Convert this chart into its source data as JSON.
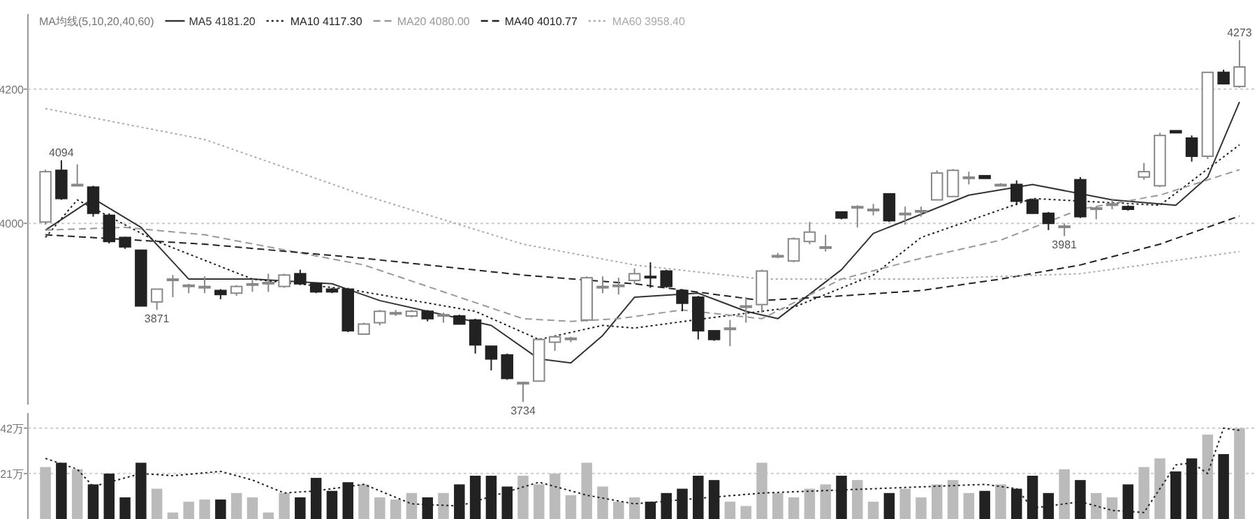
{
  "chart_data": [
    {
      "type": "candlestick",
      "categories": [
        null,
        null,
        null,
        null,
        null,
        null,
        null,
        null,
        null,
        null,
        null,
        null,
        null,
        null,
        null,
        null,
        null,
        null,
        null,
        null,
        null,
        null,
        null,
        null,
        null,
        null,
        null,
        null,
        null,
        null,
        null,
        null,
        null,
        null,
        null,
        null,
        null,
        null,
        null,
        null,
        null,
        null,
        null,
        null,
        null,
        null,
        null,
        null,
        null,
        null,
        null,
        null,
        null,
        null,
        null,
        null,
        null,
        null,
        null,
        null,
        null,
        null,
        null,
        null,
        null,
        null,
        null,
        null,
        null,
        null,
        null,
        null,
        null,
        null,
        null,
        null
      ],
      "ohlc": [
        [
          4002,
          4080,
          3998,
          4077
        ],
        [
          4079,
          4094,
          4035,
          4037
        ],
        [
          4056,
          4088,
          4056,
          4058
        ],
        [
          4054,
          4056,
          4010,
          4015
        ],
        [
          4012,
          4015,
          3970,
          3973
        ],
        [
          3979,
          3980,
          3962,
          3965
        ],
        [
          3960,
          3960,
          3877,
          3877
        ],
        [
          3883,
          3902,
          3871,
          3902
        ],
        [
          3915,
          3923,
          3890,
          3917
        ],
        [
          3906,
          3910,
          3896,
          3908
        ],
        [
          3904,
          3921,
          3896,
          3906
        ],
        [
          3900,
          3902,
          3887,
          3894
        ],
        [
          3896,
          3908,
          3892,
          3906
        ],
        [
          3908,
          3917,
          3898,
          3910
        ],
        [
          3910,
          3925,
          3898,
          3912
        ],
        [
          3906,
          3925,
          3904,
          3923
        ],
        [
          3925,
          3931,
          3908,
          3910
        ],
        [
          3910,
          3912,
          3896,
          3898
        ],
        [
          3902,
          3904,
          3896,
          3898
        ],
        [
          3902,
          3904,
          3838,
          3840
        ],
        [
          3835,
          3852,
          3835,
          3850
        ],
        [
          3852,
          3871,
          3848,
          3869
        ],
        [
          3866,
          3871,
          3862,
          3867
        ],
        [
          3862,
          3871,
          3860,
          3869
        ],
        [
          3869,
          3871,
          3854,
          3858
        ],
        [
          3862,
          3867,
          3852,
          3864
        ],
        [
          3862,
          3864,
          3850,
          3850
        ],
        [
          3856,
          3858,
          3806,
          3819
        ],
        [
          3817,
          3817,
          3781,
          3798
        ],
        [
          3804,
          3806,
          3767,
          3769
        ],
        [
          3762,
          3764,
          3734,
          3763
        ],
        [
          3765,
          3829,
          3765,
          3827
        ],
        [
          3823,
          3833,
          3810,
          3831
        ],
        [
          3827,
          3831,
          3823,
          3829
        ],
        [
          3856,
          3921,
          3854,
          3919
        ],
        [
          3904,
          3921,
          3896,
          3906
        ],
        [
          3906,
          3919,
          3894,
          3908
        ],
        [
          3915,
          3933,
          3910,
          3925
        ],
        [
          3921,
          3942,
          3904,
          3919
        ],
        [
          3929,
          3931,
          3904,
          3906
        ],
        [
          3900,
          3902,
          3869,
          3881
        ],
        [
          3890,
          3892,
          3827,
          3840
        ],
        [
          3840,
          3840,
          3825,
          3827
        ],
        [
          3842,
          3856,
          3817,
          3844
        ],
        [
          3875,
          3890,
          3852,
          3877
        ],
        [
          3879,
          3931,
          3867,
          3929
        ],
        [
          3950,
          3956,
          3948,
          3952
        ],
        [
          3944,
          3979,
          3942,
          3977
        ],
        [
          3973,
          4002,
          3969,
          3987
        ],
        [
          3963,
          3983,
          3958,
          3965
        ],
        [
          4017,
          4017,
          4006,
          4008
        ],
        [
          4023,
          4027,
          3994,
          4025
        ],
        [
          4019,
          4029,
          4012,
          4021
        ],
        [
          4044,
          4044,
          4002,
          4004
        ],
        [
          4014,
          4025,
          3998,
          4015
        ],
        [
          4017,
          4025,
          4010,
          4019
        ],
        [
          4035,
          4079,
          4035,
          4075
        ],
        [
          4040,
          4081,
          4040,
          4079
        ],
        [
          4067,
          4077,
          4058,
          4069
        ],
        [
          4071,
          4071,
          4067,
          4067
        ],
        [
          4056,
          4060,
          4056,
          4058
        ],
        [
          4058,
          4064,
          4027,
          4033
        ],
        [
          4035,
          4037,
          4015,
          4015
        ],
        [
          4015,
          4017,
          3990,
          4000
        ],
        [
          3994,
          4000,
          3981,
          3996
        ],
        [
          4065,
          4069,
          4008,
          4010
        ],
        [
          4021,
          4025,
          4006,
          4023
        ],
        [
          4027,
          4037,
          4021,
          4029
        ],
        [
          4025,
          4027,
          4019,
          4021
        ],
        [
          4069,
          4090,
          4065,
          4077
        ],
        [
          4056,
          4135,
          4054,
          4131
        ],
        [
          4138,
          4138,
          4135,
          4135
        ],
        [
          4127,
          4131,
          4092,
          4100
        ],
        [
          4100,
          4225,
          4096,
          4225
        ],
        [
          4225,
          4229,
          4208,
          4208
        ],
        [
          4204,
          4273,
          4202,
          4233
        ]
      ],
      "colors": [
        "#888888",
        "#222222",
        "#888888",
        "#222222",
        "#222222",
        "#222222",
        "#222222",
        "#888888",
        "#888888",
        "#888888",
        "#888888",
        "#222222",
        "#888888",
        "#888888",
        "#888888",
        "#888888",
        "#222222",
        "#222222",
        "#222222",
        "#222222",
        "#888888",
        "#888888",
        "#888888",
        "#888888",
        "#222222",
        "#888888",
        "#222222",
        "#222222",
        "#222222",
        "#222222",
        "#888888",
        "#888888",
        "#888888",
        "#888888",
        "#888888",
        "#888888",
        "#888888",
        "#888888",
        "#222222",
        "#222222",
        "#222222",
        "#222222",
        "#222222",
        "#888888",
        "#888888",
        "#888888",
        "#888888",
        "#888888",
        "#888888",
        "#888888",
        "#222222",
        "#888888",
        "#888888",
        "#222222",
        "#888888",
        "#888888",
        "#888888",
        "#888888",
        "#888888",
        "#222222",
        "#888888",
        "#222222",
        "#222222",
        "#222222",
        "#888888",
        "#222222",
        "#888888",
        "#888888",
        "#222222",
        "#888888",
        "#888888",
        "#222222",
        "#222222",
        "#888888",
        "#222222",
        "#888888"
      ],
      "series": [
        {
          "type": "line",
          "name": "MA5 4181.20",
          "color": "#333333",
          "line_style": "solid",
          "values": [
            3990,
            null,
            null,
            4037,
            null,
            null,
            3994,
            null,
            null,
            3917,
            null,
            null,
            null,
            3917,
            null,
            null,
            null,
            null,
            3910,
            null,
            null,
            3885,
            null,
            null,
            3869,
            null,
            null,
            null,
            3848,
            null,
            null,
            3798,
            null,
            3792,
            null,
            3833,
            null,
            3890,
            null,
            null,
            null,
            3896,
            null,
            null,
            3869,
            null,
            3858,
            null,
            null,
            null,
            3931,
            null,
            3985,
            null,
            null,
            null,
            null,
            null,
            4042,
            null,
            null,
            null,
            4058,
            null,
            null,
            null,
            null,
            4035,
            null,
            null,
            null,
            4027,
            null,
            4069,
            null,
            4181
          ]
        },
        {
          "type": "line",
          "name": "MA10 4117.30",
          "color": "#222222",
          "line_style": "dotted",
          "values": [
            3979,
            null,
            4035,
            null,
            null,
            null,
            null,
            3973,
            null,
            null,
            null,
            null,
            null,
            3917,
            null,
            null,
            null,
            null,
            null,
            3902,
            null,
            null,
            null,
            null,
            null,
            null,
            null,
            3869,
            null,
            null,
            null,
            3827,
            null,
            null,
            null,
            3848,
            null,
            3844,
            null,
            null,
            null,
            null,
            3860,
            null,
            null,
            null,
            null,
            3875,
            null,
            null,
            null,
            null,
            3923,
            null,
            null,
            3979,
            null,
            null,
            null,
            null,
            null,
            null,
            4037,
            null,
            null,
            null,
            null,
            null,
            null,
            null,
            4027,
            null,
            null,
            null,
            null,
            4117
          ]
        },
        {
          "type": "line",
          "name": "MA20 4080.00",
          "color": "#999999",
          "line_style": "dashed",
          "values": [
            3990,
            null,
            null,
            null,
            null,
            3994,
            null,
            null,
            null,
            null,
            3983,
            null,
            null,
            null,
            null,
            null,
            null,
            null,
            null,
            null,
            3938,
            null,
            null,
            null,
            null,
            null,
            null,
            null,
            null,
            null,
            3858,
            null,
            null,
            3854,
            null,
            null,
            3858,
            null,
            null,
            null,
            3871,
            null,
            null,
            null,
            null,
            3858,
            null,
            null,
            null,
            null,
            3917,
            null,
            null,
            null,
            null,
            3948,
            null,
            null,
            null,
            null,
            3975,
            null,
            null,
            null,
            null,
            4021,
            null,
            null,
            null,
            null,
            4042,
            null,
            null,
            null,
            null,
            4080
          ]
        },
        {
          "type": "line",
          "name": "MA40 4010.77",
          "color": "#222222",
          "line_style": "dashed",
          "values": [
            3983,
            null,
            null,
            null,
            null,
            null,
            null,
            null,
            null,
            null,
            3969,
            null,
            null,
            null,
            null,
            null,
            null,
            null,
            null,
            null,
            3948,
            null,
            null,
            null,
            null,
            null,
            null,
            null,
            null,
            null,
            3923,
            null,
            null,
            null,
            null,
            null,
            null,
            3910,
            null,
            null,
            null,
            null,
            null,
            null,
            null,
            3885,
            null,
            null,
            null,
            null,
            3892,
            null,
            null,
            null,
            null,
            3900,
            null,
            null,
            null,
            null,
            3917,
            null,
            null,
            null,
            null,
            3938,
            null,
            null,
            null,
            null,
            3969,
            null,
            null,
            null,
            null,
            4011
          ]
        },
        {
          "type": "line",
          "name": "MA60 3958.40",
          "color": "#aaaaaa",
          "line_style": "dotted",
          "values": [
            4171,
            null,
            null,
            null,
            null,
            null,
            null,
            null,
            null,
            null,
            4125,
            null,
            null,
            null,
            null,
            null,
            null,
            null,
            null,
            null,
            4042,
            null,
            null,
            null,
            null,
            null,
            null,
            null,
            null,
            null,
            3969,
            null,
            null,
            null,
            null,
            null,
            null,
            3938,
            null,
            null,
            null,
            null,
            null,
            null,
            null,
            3917,
            null,
            null,
            null,
            null,
            null,
            null,
            null,
            null,
            null,
            3917,
            null,
            null,
            null,
            null,
            null,
            null,
            null,
            null,
            null,
            3925,
            null,
            null,
            null,
            null,
            null,
            null,
            null,
            null,
            null,
            3958
          ]
        }
      ],
      "legend": "top left",
      "legend_title": "MA均线(5,10,20,40,60)",
      "ylim": [
        3730,
        4312
      ],
      "yticks": [
        4000,
        4200
      ],
      "grid": "y",
      "annotations": [
        {
          "text": "4094",
          "y": 4094
        },
        {
          "text": "3871",
          "y": 3871
        },
        {
          "text": "3734",
          "y": 3734
        },
        {
          "text": "3981",
          "y": 3981
        },
        {
          "text": "4273",
          "y": 4273
        }
      ]
    },
    {
      "type": "bar",
      "categories": [
        null,
        null,
        null,
        null,
        null,
        null,
        null,
        null,
        null,
        null,
        null,
        null,
        null,
        null,
        null,
        null,
        null,
        null,
        null,
        null,
        null,
        null,
        null,
        null,
        null,
        null,
        null,
        null,
        null,
        null,
        null,
        null,
        null,
        null,
        null,
        null,
        null,
        null,
        null,
        null,
        null,
        null,
        null,
        null,
        null,
        null,
        null,
        null,
        null,
        null,
        null,
        null,
        null,
        null,
        null,
        null,
        null,
        null,
        null,
        null,
        null,
        null,
        null,
        null,
        null,
        null,
        null,
        null,
        null,
        null,
        null,
        null,
        null,
        null,
        null,
        null
      ],
      "values": [
        24,
        26,
        23,
        16,
        21,
        10,
        26,
        14,
        3,
        8,
        9,
        9,
        12,
        10,
        3,
        12,
        10,
        19,
        13,
        17,
        16,
        10,
        9,
        12,
        10,
        12,
        16,
        20,
        20,
        15,
        20,
        16,
        21,
        11,
        26,
        15,
        8,
        10,
        8,
        12,
        14,
        20,
        18,
        8,
        6,
        26,
        12,
        10,
        14,
        16,
        20,
        18,
        8,
        12,
        14,
        10,
        16,
        18,
        12,
        13,
        16,
        14,
        20,
        12,
        23,
        18,
        12,
        10,
        16,
        24,
        28,
        22,
        28,
        39,
        30,
        42
      ],
      "colors": [
        "#bbbbbb",
        "#222222",
        "#bbbbbb",
        "#222222",
        "#222222",
        "#222222",
        "#222222",
        "#bbbbbb",
        "#bbbbbb",
        "#bbbbbb",
        "#bbbbbb",
        "#222222",
        "#bbbbbb",
        "#bbbbbb",
        "#bbbbbb",
        "#bbbbbb",
        "#222222",
        "#222222",
        "#222222",
        "#222222",
        "#bbbbbb",
        "#bbbbbb",
        "#bbbbbb",
        "#bbbbbb",
        "#222222",
        "#bbbbbb",
        "#222222",
        "#222222",
        "#222222",
        "#222222",
        "#bbbbbb",
        "#bbbbbb",
        "#bbbbbb",
        "#bbbbbb",
        "#bbbbbb",
        "#bbbbbb",
        "#bbbbbb",
        "#bbbbbb",
        "#222222",
        "#222222",
        "#222222",
        "#222222",
        "#222222",
        "#bbbbbb",
        "#bbbbbb",
        "#bbbbbb",
        "#bbbbbb",
        "#bbbbbb",
        "#bbbbbb",
        "#bbbbbb",
        "#222222",
        "#bbbbbb",
        "#bbbbbb",
        "#222222",
        "#bbbbbb",
        "#bbbbbb",
        "#bbbbbb",
        "#bbbbbb",
        "#bbbbbb",
        "#222222",
        "#bbbbbb",
        "#222222",
        "#222222",
        "#222222",
        "#bbbbbb",
        "#222222",
        "#bbbbbb",
        "#bbbbbb",
        "#222222",
        "#bbbbbb",
        "#bbbbbb",
        "#222222",
        "#222222",
        "#bbbbbb",
        "#222222",
        "#bbbbbb"
      ],
      "series": [
        {
          "type": "line",
          "color": "#222222",
          "line_style": "dotted",
          "values": [
            28,
            null,
            23,
            15,
            null,
            null,
            21,
            null,
            20,
            null,
            null,
            22,
            null,
            18,
            null,
            12,
            null,
            13,
            null,
            null,
            16,
            null,
            null,
            7,
            null,
            null,
            6,
            null,
            null,
            null,
            null,
            17,
            null,
            null,
            11,
            null,
            null,
            7,
            null,
            null,
            null,
            null,
            null,
            null,
            null,
            12,
            null,
            null,
            null,
            null,
            null,
            null,
            14,
            null,
            null,
            null,
            null,
            null,
            null,
            16,
            null,
            14,
            5,
            null,
            null,
            8,
            null,
            4,
            null,
            3,
            null,
            25,
            26,
            21,
            42,
            41
          ]
        }
      ],
      "ylim": [
        0,
        49
      ],
      "yticks": [
        {
          "value": 21,
          "label": "21万"
        },
        {
          "value": 42,
          "label": "42万"
        }
      ],
      "grid": "y"
    }
  ]
}
